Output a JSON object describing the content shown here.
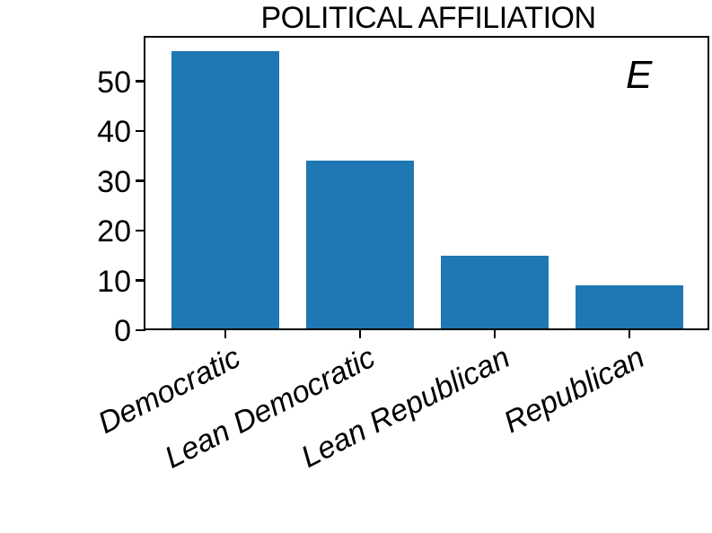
{
  "chart_data": {
    "type": "bar",
    "title": "POLITICAL AFFILIATION",
    "annotation": "E",
    "categories": [
      "Democratic",
      "Lean Democratic",
      "Lean Republican",
      "Republican"
    ],
    "values": [
      56,
      34,
      15,
      9
    ],
    "yticks": [
      0,
      10,
      20,
      30,
      40,
      50
    ],
    "ylim": [
      0,
      58.8
    ],
    "xlabel": "",
    "ylabel": "",
    "grid": false,
    "legend": null,
    "bar_color": "#1f77b4",
    "text_color": "#000000",
    "background_color": "#ffffff",
    "xtick_rotation_deg": 27,
    "xtick_style": "italic"
  }
}
